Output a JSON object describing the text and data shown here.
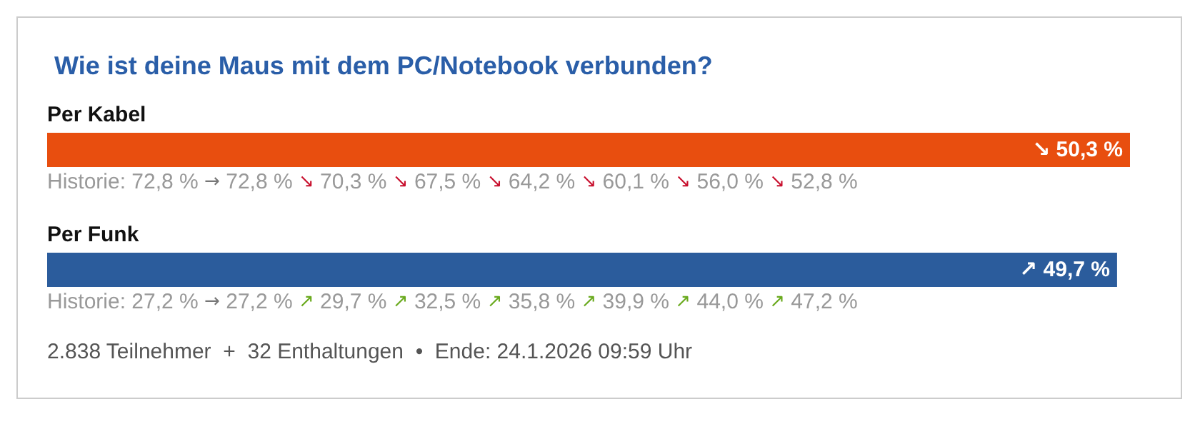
{
  "chart_data": {
    "type": "bar",
    "orientation": "horizontal",
    "title": "Wie ist deine Maus mit dem PC/Notebook verbunden?",
    "categories": [
      "Per Kabel",
      "Per Funk"
    ],
    "values": [
      50.3,
      49.7
    ],
    "colors": [
      "#e84e0f",
      "#2b5c9c"
    ],
    "value_labels": [
      "↘ 50,3 %",
      "↗ 49,7 %"
    ],
    "annotations": [
      "Historie: 72,8 % → 72,8 % ↘ 70,3 % ↘ 67,5 % ↘ 64,2 % ↘ 60,1 % ↘ 56,0 % ↘ 52,8 %",
      "Historie: 27,2 % → 27,2 % ↗ 29,7 % ↗ 32,5 % ↗ 35,8 % ↗ 39,9 % ↗ 44,0 % ↗ 47,2 %",
      "2.838 Teilnehmer  +  32 Enthaltungen  •  Ende: 24.1.2026 09:59 Uhr"
    ]
  }
}
